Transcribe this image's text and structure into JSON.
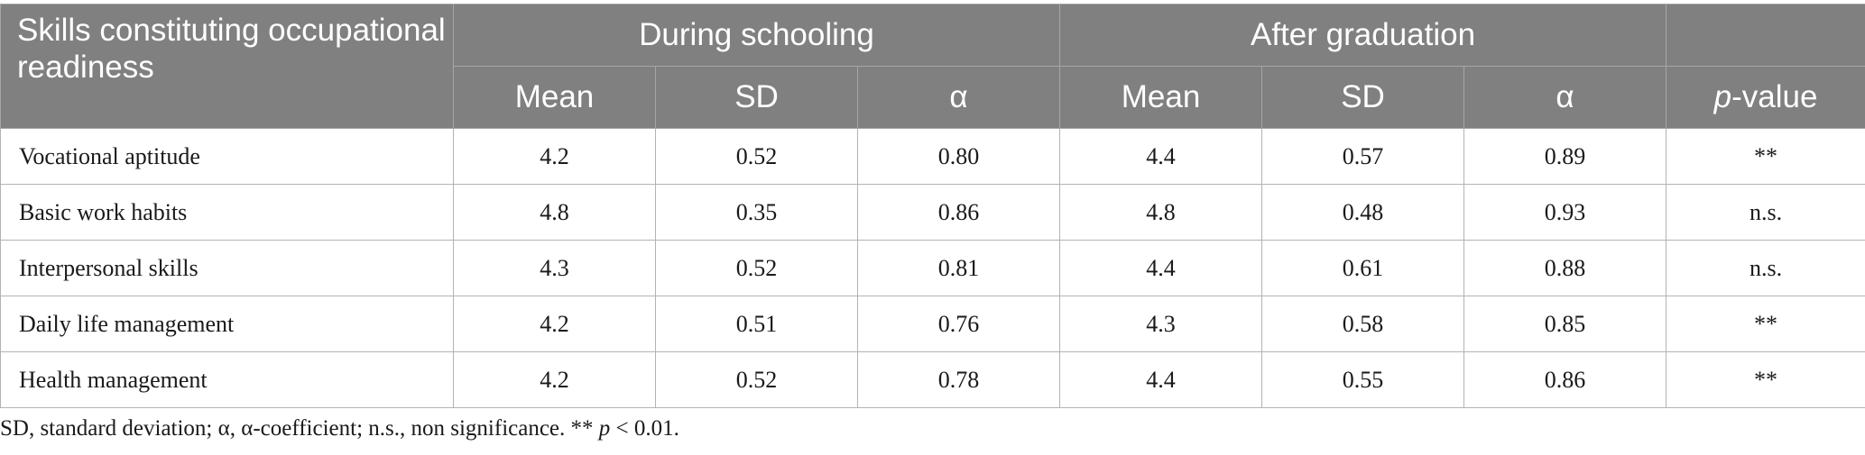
{
  "table": {
    "stub_header": "Skills constituting occupational readiness",
    "groups": [
      "During schooling",
      "After graduation"
    ],
    "subheaders": [
      "Mean",
      "SD",
      "α",
      "Mean",
      "SD",
      "α"
    ],
    "pvalue_header_italic": "p",
    "pvalue_header_rest": "-value",
    "rows": [
      {
        "label": "Vocational aptitude",
        "values": [
          "4.2",
          "0.52",
          "0.80",
          "4.4",
          "0.57",
          "0.89",
          "**"
        ]
      },
      {
        "label": "Basic work habits",
        "values": [
          "4.8",
          "0.35",
          "0.86",
          "4.8",
          "0.48",
          "0.93",
          "n.s."
        ]
      },
      {
        "label": "Interpersonal skills",
        "values": [
          "4.3",
          "0.52",
          "0.81",
          "4.4",
          "0.61",
          "0.88",
          "n.s."
        ]
      },
      {
        "label": "Daily life management",
        "values": [
          "4.2",
          "0.51",
          "0.76",
          "4.3",
          "0.58",
          "0.85",
          "**"
        ]
      },
      {
        "label": "Health management",
        "values": [
          "4.2",
          "0.52",
          "0.78",
          "4.4",
          "0.55",
          "0.86",
          "**"
        ]
      }
    ]
  },
  "footnote": {
    "text": "SD, standard deviation; α, α-coefficient; n.s., non significance. ** ",
    "italic": "p",
    "tail": " < 0.01."
  }
}
